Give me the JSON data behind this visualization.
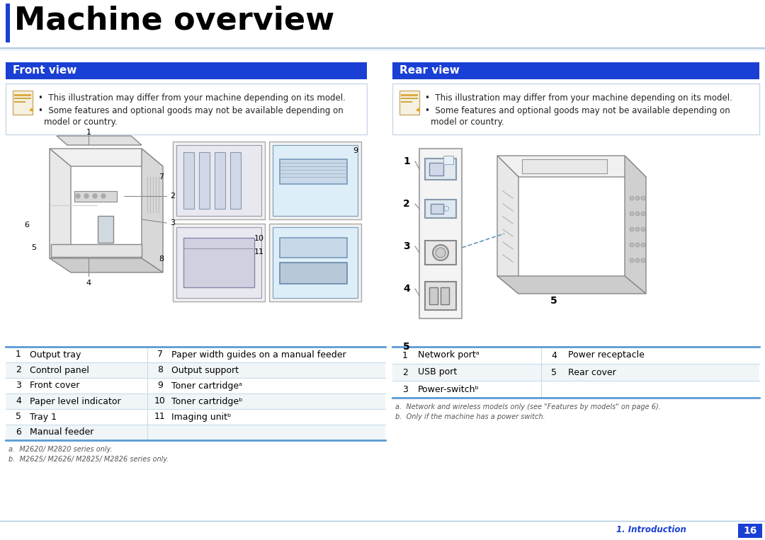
{
  "title": "Machine overview",
  "title_color": "#000000",
  "title_fontsize": 32,
  "title_fontweight": "bold",
  "accent_bar_color": "#1a3fd4",
  "divider_color": "#adc8dc",
  "section_header_bg": "#1a3fd4",
  "section_header_text_color": "#ffffff",
  "section_header_fontsize": 11,
  "section_header_fontweight": "bold",
  "front_view_title": "Front view",
  "rear_view_title": "Rear view",
  "body_bg": "#ffffff",
  "note_border": "#c8d8e8",
  "note_text_color": "#222222",
  "note_fontsize": 8.5,
  "note_icon_color": "#e8a020",
  "table_border_color": "#5b9bd5",
  "table_row_divider": "#c8dce8",
  "table_text_color": "#000000",
  "table_fontsize": 9,
  "front_table": [
    [
      "1",
      "Output tray",
      "7",
      "Paper width guides on a manual feeder"
    ],
    [
      "2",
      "Control panel",
      "8",
      "Output support"
    ],
    [
      "3",
      "Front cover",
      "9",
      "Toner cartridgeᵃ"
    ],
    [
      "4",
      "Paper level indicator",
      "10",
      "Toner cartridgeᵇ"
    ],
    [
      "5",
      "Tray 1",
      "11",
      "Imaging unitᵇ"
    ],
    [
      "6",
      "Manual feeder",
      "",
      ""
    ]
  ],
  "front_footnotes": [
    "a.  M2620/ M2820 series only.",
    "b.  M2625/ M2626/ M2825/ M2826 series only."
  ],
  "rear_table": [
    [
      "1",
      "Network portᵃ",
      "4",
      "Power receptacle"
    ],
    [
      "2",
      "USB port",
      "5",
      "Rear cover"
    ],
    [
      "3",
      "Power-switchᵇ",
      "",
      ""
    ]
  ],
  "rear_footnotes": [
    "a.  Network and wireless models only (see \"Features by models\" on page 6).",
    "b.  Only if the machine has a power switch."
  ],
  "footer_text": "1. Introduction",
  "footer_page": "16",
  "footer_color": "#1a3fd4",
  "footer_fontsize": 8.5
}
